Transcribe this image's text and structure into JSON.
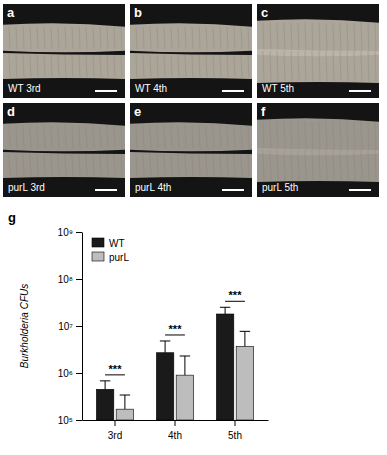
{
  "panels": [
    {
      "letter": "a",
      "label": "WT 3rd"
    },
    {
      "letter": "b",
      "label": "WT 4th"
    },
    {
      "letter": "c",
      "label": "WT 5th"
    },
    {
      "letter": "d",
      "label": "purL 3rd"
    },
    {
      "letter": "e",
      "label": "purL 4th"
    },
    {
      "letter": "f",
      "label": "purL 5th"
    }
  ],
  "chart_data": {
    "type": "bar",
    "title": "g",
    "y_label": "Burkholderia CFUs",
    "categories": [
      "3rd",
      "4th",
      "5th"
    ],
    "series": [
      {
        "name": "WT",
        "color": "#1a1a1a",
        "values": [
          450000,
          2700000,
          18000000
        ],
        "errors": [
          230000,
          2100000,
          7000000
        ]
      },
      {
        "name": "purL",
        "color": "#bdbdbd",
        "values": [
          170000,
          900000,
          3700000
        ],
        "errors": [
          170000,
          1400000,
          4000000
        ]
      }
    ],
    "log": "y",
    "ylim": [
      100000,
      1000000000
    ],
    "yticks": [
      {
        "value": 100000,
        "label": "10⁵"
      },
      {
        "value": 1000000,
        "label": "10⁶"
      },
      {
        "value": 10000000,
        "label": "10⁷"
      },
      {
        "value": 100000000,
        "label": "10⁸"
      },
      {
        "value": 1000000000,
        "label": "10⁹"
      }
    ],
    "legend": "upper left",
    "grid": false,
    "annotations": [
      {
        "text": "***",
        "category": "3rd"
      },
      {
        "text": "***",
        "category": "4th"
      },
      {
        "text": "***",
        "category": "5th"
      }
    ]
  }
}
